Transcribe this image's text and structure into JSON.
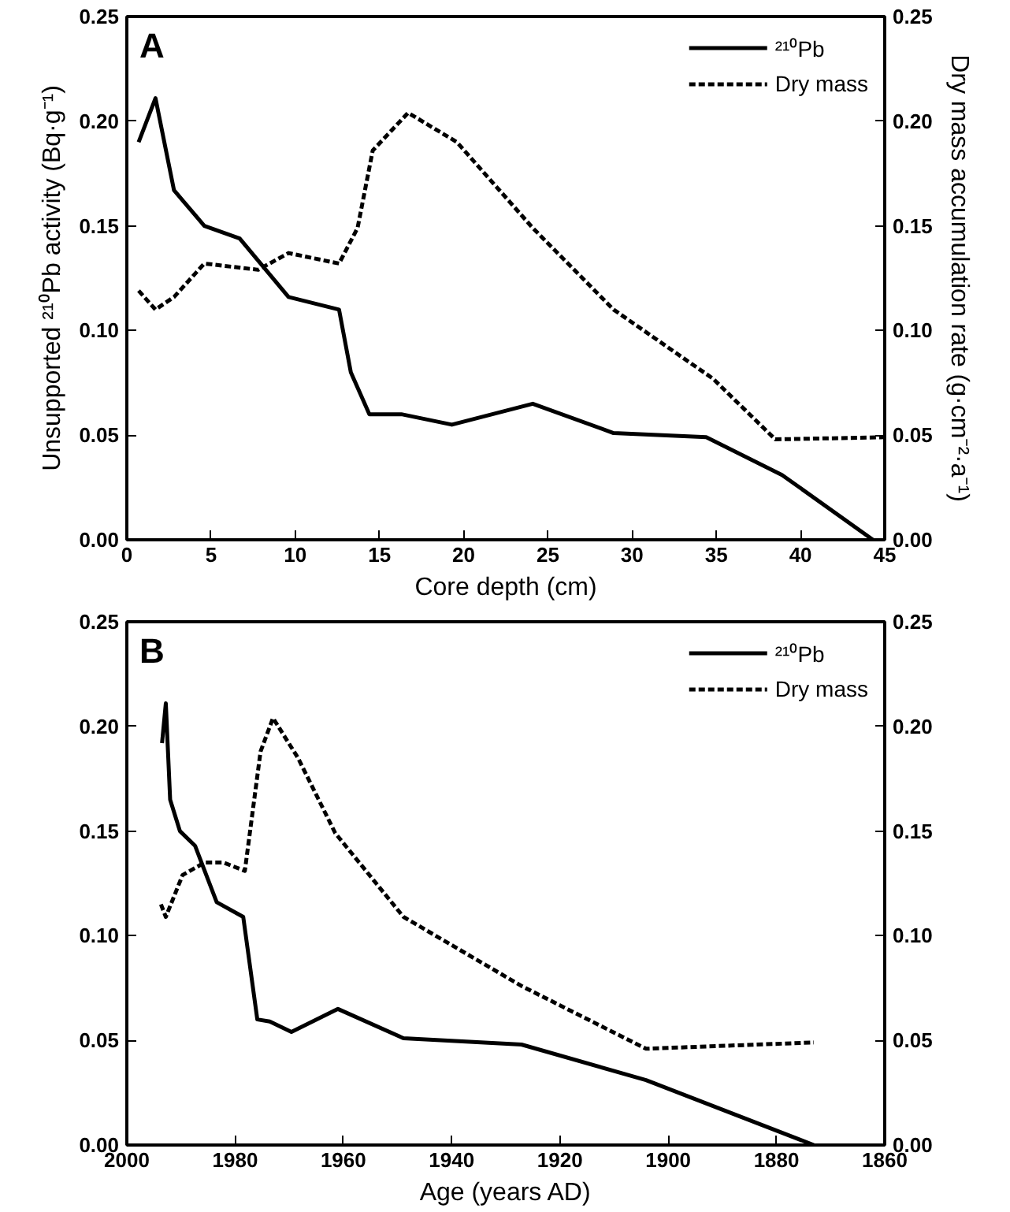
{
  "chart_data": [
    {
      "type": "line",
      "annotations": [
        "A"
      ],
      "xlabel": "Core depth (cm)",
      "ylabel": "Unsupported ²¹⁰Pb activity (Bq·g⁻¹)",
      "y2label": "Dry mass accumulation rate (g·cm⁻²·a⁻¹)",
      "xlim": [
        0,
        45
      ],
      "xticks": [
        0,
        5,
        10,
        15,
        20,
        25,
        30,
        35,
        40,
        45
      ],
      "ylim": [
        0,
        0.25
      ],
      "yticks": [
        {
          "value": 0,
          "label": "0.00"
        },
        0.05,
        {
          "value": 0.1,
          "label": "0.10"
        },
        0.15,
        {
          "value": 0.2,
          "label": "0.20"
        },
        0.25
      ],
      "y2lim": [
        0,
        0.25
      ],
      "y2ticks": [
        {
          "value": 0,
          "label": "0.00"
        },
        0.05,
        {
          "value": 0.1,
          "label": "0.10"
        },
        0.15,
        {
          "value": 0.2,
          "label": "0.20"
        },
        0.25
      ],
      "legend": "top right",
      "grid": false,
      "series": [
        {
          "name": "²¹⁰Pb",
          "color": "#000000",
          "line_style": "solid",
          "x": [
            0.7,
            1.7,
            2.8,
            4.6,
            6.7,
            9.6,
            12.6,
            13.3,
            14.4,
            16.3,
            19.3,
            24.1,
            28.9,
            34.4,
            38.9,
            44.3
          ],
          "values": [
            0.19,
            0.211,
            0.167,
            0.15,
            0.144,
            0.116,
            0.11,
            0.08,
            0.06,
            0.06,
            0.055,
            0.065,
            0.051,
            0.049,
            0.031,
            0.0
          ]
        },
        {
          "name": "Dry mass",
          "color": "#000000",
          "line_style": "dashed",
          "x": [
            0.7,
            1.7,
            2.8,
            4.6,
            7.8,
            9.6,
            12.6,
            13.7,
            14.6,
            16.7,
            19.6,
            24.1,
            28.9,
            34.8,
            38.5,
            45
          ],
          "values": [
            0.119,
            0.11,
            0.116,
            0.132,
            0.129,
            0.137,
            0.132,
            0.149,
            0.186,
            0.204,
            0.19,
            0.149,
            0.11,
            0.077,
            0.048,
            0.049
          ]
        }
      ]
    },
    {
      "type": "line",
      "annotations": [
        "B"
      ],
      "xlabel": "Age (years AD)",
      "xlim": [
        2000,
        1860
      ],
      "xticks": [
        2000,
        1980,
        1960,
        1940,
        1920,
        1900,
        1880,
        1860
      ],
      "ylim": [
        0,
        0.25
      ],
      "yticks": [
        {
          "value": 0,
          "label": "0.00"
        },
        0.05,
        {
          "value": 0.1,
          "label": "0.10"
        },
        0.15,
        {
          "value": 0.2,
          "label": "0.20"
        },
        0.25
      ],
      "y2lim": [
        0,
        0.25
      ],
      "y2ticks": [
        {
          "value": 0,
          "label": "0.00"
        },
        0.05,
        {
          "value": 0.1,
          "label": "0.10"
        },
        0.15,
        {
          "value": 0.2,
          "label": "0.20"
        },
        0.25
      ],
      "legend": "top right",
      "grid": false,
      "series": [
        {
          "name": "²¹⁰Pb",
          "color": "#000000",
          "line_style": "solid",
          "x": [
            1993.5,
            1992.8,
            1992,
            1990.2,
            1987.4,
            1983.4,
            1978.5,
            1975.9,
            1973.6,
            1969.6,
            1961,
            1948.9,
            1927.1,
            1904.1,
            1873.1
          ],
          "values": [
            0.192,
            0.211,
            0.165,
            0.15,
            0.143,
            0.116,
            0.109,
            0.06,
            0.059,
            0.054,
            0.065,
            0.051,
            0.048,
            0.031,
            0.0
          ]
        },
        {
          "name": "Dry mass",
          "color": "#000000",
          "line_style": "dashed",
          "x": [
            1993.7,
            1992.8,
            1989.7,
            1985.6,
            1982.2,
            1978.2,
            1975.3,
            1973,
            1968.4,
            1961.5,
            1948.9,
            1927.1,
            1904.1,
            1873.1
          ],
          "values": [
            0.115,
            0.109,
            0.129,
            0.135,
            0.135,
            0.131,
            0.188,
            0.204,
            0.185,
            0.149,
            0.109,
            0.076,
            0.046,
            0.049
          ]
        }
      ]
    }
  ]
}
